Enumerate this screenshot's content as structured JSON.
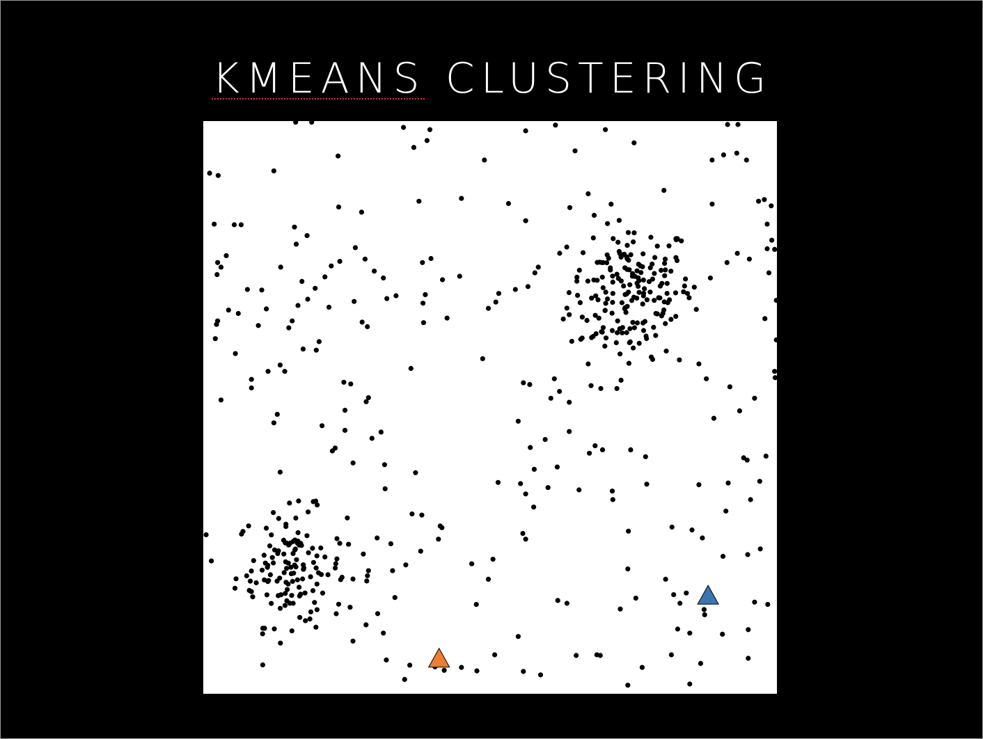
{
  "slide": {
    "title_word1": "KMEANS",
    "title_word2": "CLUSTERING"
  },
  "chart_data": {
    "type": "scatter",
    "title": "KMEANS CLUSTERING",
    "xlim": [
      0,
      100
    ],
    "ylim": [
      0,
      100
    ],
    "grid": false,
    "legend": "none",
    "point_color": "#000000",
    "centroid_stroke": "#000000",
    "centroids": [
      {
        "x": 41.1,
        "y": 6.2,
        "color": "#EE7D31"
      },
      {
        "x": 88.0,
        "y": 17.2,
        "color": "#3D75B0"
      }
    ],
    "points": [
      [
        16.1,
        99.8
      ],
      [
        18.9,
        99.8
      ],
      [
        34.9,
        98.9
      ],
      [
        39.5,
        98.5
      ],
      [
        56.2,
        98.3
      ],
      [
        61.4,
        99.3
      ],
      [
        70.1,
        98.5
      ],
      [
        91.4,
        99.4
      ],
      [
        93.2,
        99.4
      ],
      [
        23.5,
        93.9
      ],
      [
        36.7,
        95.4
      ],
      [
        39.0,
        96.6
      ],
      [
        49.0,
        93.2
      ],
      [
        64.8,
        94.8
      ],
      [
        75.1,
        96.2
      ],
      [
        90.7,
        94.1
      ],
      [
        88.7,
        93.2
      ],
      [
        93.0,
        94.4
      ],
      [
        94.7,
        93.2
      ],
      [
        1.1,
        90.9
      ],
      [
        2.6,
        90.5
      ],
      [
        12.3,
        91.3
      ],
      [
        23.6,
        85.0
      ],
      [
        27.6,
        84.1
      ],
      [
        37.6,
        86.0
      ],
      [
        45.0,
        86.5
      ],
      [
        53.2,
        85.6
      ],
      [
        56.2,
        82.6
      ],
      [
        63.9,
        84.9
      ],
      [
        67.1,
        87.3
      ],
      [
        80.3,
        87.9
      ],
      [
        88.7,
        85.5
      ],
      [
        96.8,
        86.0
      ],
      [
        99.0,
        85.2
      ],
      [
        6.6,
        81.9
      ],
      [
        16.2,
        78.5
      ],
      [
        15.9,
        81.5
      ],
      [
        18.1,
        80.0
      ],
      [
        26.5,
        77.9
      ],
      [
        28.2,
        75.9
      ],
      [
        22.3,
        74.7
      ],
      [
        13.5,
        74.5
      ],
      [
        2.4,
        73.2
      ],
      [
        3.1,
        74.5
      ],
      [
        17.2,
        72.0
      ],
      [
        19.5,
        70.8
      ],
      [
        21.2,
        72.8
      ],
      [
        23.8,
        75.5
      ],
      [
        29.8,
        73.8
      ],
      [
        31.4,
        72.6
      ],
      [
        38.2,
        75.3
      ],
      [
        41.7,
        72.3
      ],
      [
        44.7,
        72.9
      ],
      [
        51.5,
        69.9
      ],
      [
        38.7,
        69.7
      ],
      [
        51.0,
        68.4
      ],
      [
        33.6,
        69.5
      ],
      [
        26.3,
        68.5
      ],
      [
        28.6,
        64.1
      ],
      [
        27.7,
        64.9
      ],
      [
        21.9,
        67.5
      ],
      [
        16.5,
        67.8
      ],
      [
        11.0,
        67.2
      ],
      [
        4.4,
        67.0
      ],
      [
        2.3,
        64.5
      ],
      [
        2.1,
        62.0
      ],
      [
        5.6,
        59.4
      ],
      [
        32.0,
        69.0
      ],
      [
        42.5,
        65.6
      ],
      [
        38.4,
        64.8
      ],
      [
        49.7,
        67.3
      ],
      [
        54.4,
        70.6
      ],
      [
        56.6,
        71.1
      ],
      [
        57.8,
        73.5
      ],
      [
        58.4,
        74.5
      ],
      [
        69.7,
        70.9
      ],
      [
        71.4,
        69.9
      ],
      [
        73.8,
        76.3
      ],
      [
        85.6,
        71.0
      ],
      [
        84.4,
        69.9
      ],
      [
        91.3,
        75.3
      ],
      [
        95.2,
        75.9
      ],
      [
        98.6,
        73.5
      ],
      [
        99.9,
        68.7
      ],
      [
        99.1,
        79.2
      ],
      [
        98.3,
        82.0
      ],
      [
        97.8,
        86.3
      ],
      [
        99.9,
        61.8
      ],
      [
        99.7,
        55.2
      ],
      [
        98.3,
        77.7
      ],
      [
        93.1,
        76.9
      ],
      [
        88.4,
        72.6
      ],
      [
        83.9,
        71.2
      ],
      [
        74.3,
        61.3
      ],
      [
        74.2,
        57.7
      ],
      [
        69.3,
        53.3
      ],
      [
        67.1,
        57.6
      ],
      [
        63.8,
        66.2
      ],
      [
        61.2,
        55.0
      ],
      [
        54.9,
        47.6
      ],
      [
        57.0,
        43.0
      ],
      [
        56.2,
        34.9
      ],
      [
        51.4,
        36.9
      ],
      [
        55.3,
        36.7
      ],
      [
        60.1,
        36.0
      ],
      [
        57.7,
        39.2
      ],
      [
        55.7,
        28.0
      ],
      [
        50.5,
        23.5
      ],
      [
        46.8,
        22.7
      ],
      [
        49.7,
        20.0
      ],
      [
        47.6,
        15.6
      ],
      [
        41.6,
        29.0
      ],
      [
        41.0,
        27.0
      ],
      [
        37.0,
        38.6
      ],
      [
        41.3,
        29.3
      ],
      [
        31.7,
        35.8
      ],
      [
        31.6,
        40.0
      ],
      [
        38.1,
        31.2
      ],
      [
        36.4,
        31.4
      ],
      [
        32.7,
        26.2
      ],
      [
        33.0,
        21.5
      ],
      [
        37.9,
        24.9
      ],
      [
        35.3,
        22.5
      ],
      [
        30.3,
        27.2
      ],
      [
        28.5,
        19.7
      ],
      [
        28.8,
        21.5
      ],
      [
        25.6,
        15.1
      ],
      [
        33.4,
        16.8
      ],
      [
        30.4,
        14.0
      ],
      [
        27.9,
        24.4
      ],
      [
        31.4,
        10.6
      ],
      [
        31.9,
        5.9
      ],
      [
        36.0,
        5.0
      ],
      [
        35.1,
        2.5
      ],
      [
        42.0,
        4.1
      ],
      [
        40.4,
        4.7
      ],
      [
        45.0,
        4.6
      ],
      [
        47.7,
        4.0
      ],
      [
        50.8,
        6.8
      ],
      [
        55.8,
        3.9
      ],
      [
        58.8,
        3.3
      ],
      [
        65.0,
        6.7
      ],
      [
        69.2,
        6.7
      ],
      [
        74.0,
        1.5
      ],
      [
        76.5,
        4.6
      ],
      [
        81.6,
        6.8
      ],
      [
        84.8,
        10.6
      ],
      [
        83.1,
        15.8
      ],
      [
        84.2,
        17.6
      ],
      [
        82.0,
        17.3
      ],
      [
        80.6,
        20.0
      ],
      [
        87.3,
        14.7
      ],
      [
        87.4,
        13.8
      ],
      [
        82.7,
        11.3
      ],
      [
        90.5,
        10.4
      ],
      [
        95.0,
        11.2
      ],
      [
        96.1,
        16.0
      ],
      [
        98.4,
        15.6
      ],
      [
        95.0,
        6.2
      ],
      [
        86.7,
        5.3
      ],
      [
        84.8,
        1.7
      ],
      [
        75.4,
        16.7
      ],
      [
        61.8,
        16.3
      ],
      [
        54.9,
        10.0
      ],
      [
        63.4,
        15.8
      ],
      [
        68.6,
        6.8
      ],
      [
        72.7,
        14.8
      ],
      [
        56.2,
        27.0
      ],
      [
        74.0,
        21.8
      ],
      [
        74.1,
        28.4
      ],
      [
        71.3,
        35.4
      ],
      [
        65.5,
        35.6
      ],
      [
        57.6,
        32.6
      ],
      [
        59.6,
        44.4
      ],
      [
        68.3,
        43.3
      ],
      [
        71.4,
        33.9
      ],
      [
        77.3,
        36.6
      ],
      [
        81.7,
        29.1
      ],
      [
        90.6,
        24.0
      ],
      [
        94.9,
        24.3
      ],
      [
        97.1,
        25.3
      ],
      [
        95.4,
        33.9
      ],
      [
        87.0,
        27.2
      ],
      [
        85.2,
        28.6
      ],
      [
        91.1,
        31.9
      ],
      [
        97.0,
        37.1
      ],
      [
        98.1,
        41.5
      ],
      [
        89.0,
        48.1
      ],
      [
        93.5,
        49.4
      ],
      [
        94.2,
        41.2
      ],
      [
        94.8,
        40.8
      ],
      [
        91.5,
        36.8
      ],
      [
        77.1,
        41.4
      ],
      [
        74.5,
        42.6
      ],
      [
        67.3,
        42.0
      ],
      [
        63.8,
        45.8
      ],
      [
        61.7,
        39.6
      ],
      [
        69.6,
        42.6
      ],
      [
        76.0,
        61.2
      ],
      [
        83.0,
        58.3
      ],
      [
        78.1,
        58.8
      ],
      [
        72.1,
        53.3
      ],
      [
        67.6,
        53.8
      ],
      [
        60.6,
        51.6
      ],
      [
        56.9,
        54.0
      ],
      [
        55.8,
        54.3
      ],
      [
        62.1,
        52.8
      ],
      [
        63.8,
        50.9
      ],
      [
        65.8,
        61.9
      ],
      [
        67.7,
        62.2
      ],
      [
        70.0,
        60.7
      ],
      [
        72.0,
        61.3
      ],
      [
        73.8,
        69.8
      ],
      [
        86.4,
        57.6
      ],
      [
        87.7,
        55.0
      ],
      [
        86.4,
        36.5
      ],
      [
        91.8,
        53.6
      ],
      [
        96.1,
        51.6
      ],
      [
        99.6,
        56.3
      ],
      [
        97.9,
        65.5
      ],
      [
        99.6,
        77.6
      ],
      [
        48.7,
        58.5
      ],
      [
        39.7,
        76.0
      ],
      [
        38.3,
        68.2
      ],
      [
        24.7,
        49.5
      ],
      [
        29.4,
        44.6
      ],
      [
        26.1,
        40.3
      ],
      [
        24.7,
        46.0
      ],
      [
        12.9,
        48.8
      ],
      [
        12.3,
        47.3
      ],
      [
        13.4,
        38.7
      ],
      [
        20.7,
        46.8
      ],
      [
        22.5,
        42.4
      ],
      [
        23.0,
        42.9
      ],
      [
        28.8,
        51.7
      ],
      [
        31.0,
        45.7
      ],
      [
        28.4,
        51.0
      ],
      [
        36.2,
        56.8
      ],
      [
        19.7,
        60.0
      ],
      [
        20.2,
        61.5
      ],
      [
        6.1,
        66.4
      ],
      [
        7.7,
        70.6
      ],
      [
        2.5,
        65.1
      ],
      [
        25.7,
        54.1
      ],
      [
        24.5,
        54.4
      ],
      [
        17.4,
        60.2
      ],
      [
        15.5,
        65.1
      ],
      [
        10.2,
        70.5
      ],
      [
        14.9,
        63.9
      ],
      [
        18.2,
        68.9
      ],
      [
        14.2,
        56.3
      ],
      [
        13.4,
        57.4
      ],
      [
        8.4,
        53.4
      ],
      [
        8.4,
        54.9
      ],
      [
        3.1,
        51.3
      ],
      [
        11.3,
        56.3
      ],
      [
        2.5,
        75.3
      ],
      [
        9.6,
        64.3
      ],
      [
        1.9,
        82.0
      ],
      [
        5.4,
        81.9
      ],
      [
        4.0,
        76.5
      ]
    ],
    "clusters": [
      {
        "center_x": 74.5,
        "center_y": 70.5,
        "spread_x": 5.4,
        "spread_y": 6.0,
        "count": 175
      },
      {
        "center_x": 15.3,
        "center_y": 22.0,
        "spread_x": 4.8,
        "spread_y": 5.0,
        "count": 140
      }
    ]
  }
}
